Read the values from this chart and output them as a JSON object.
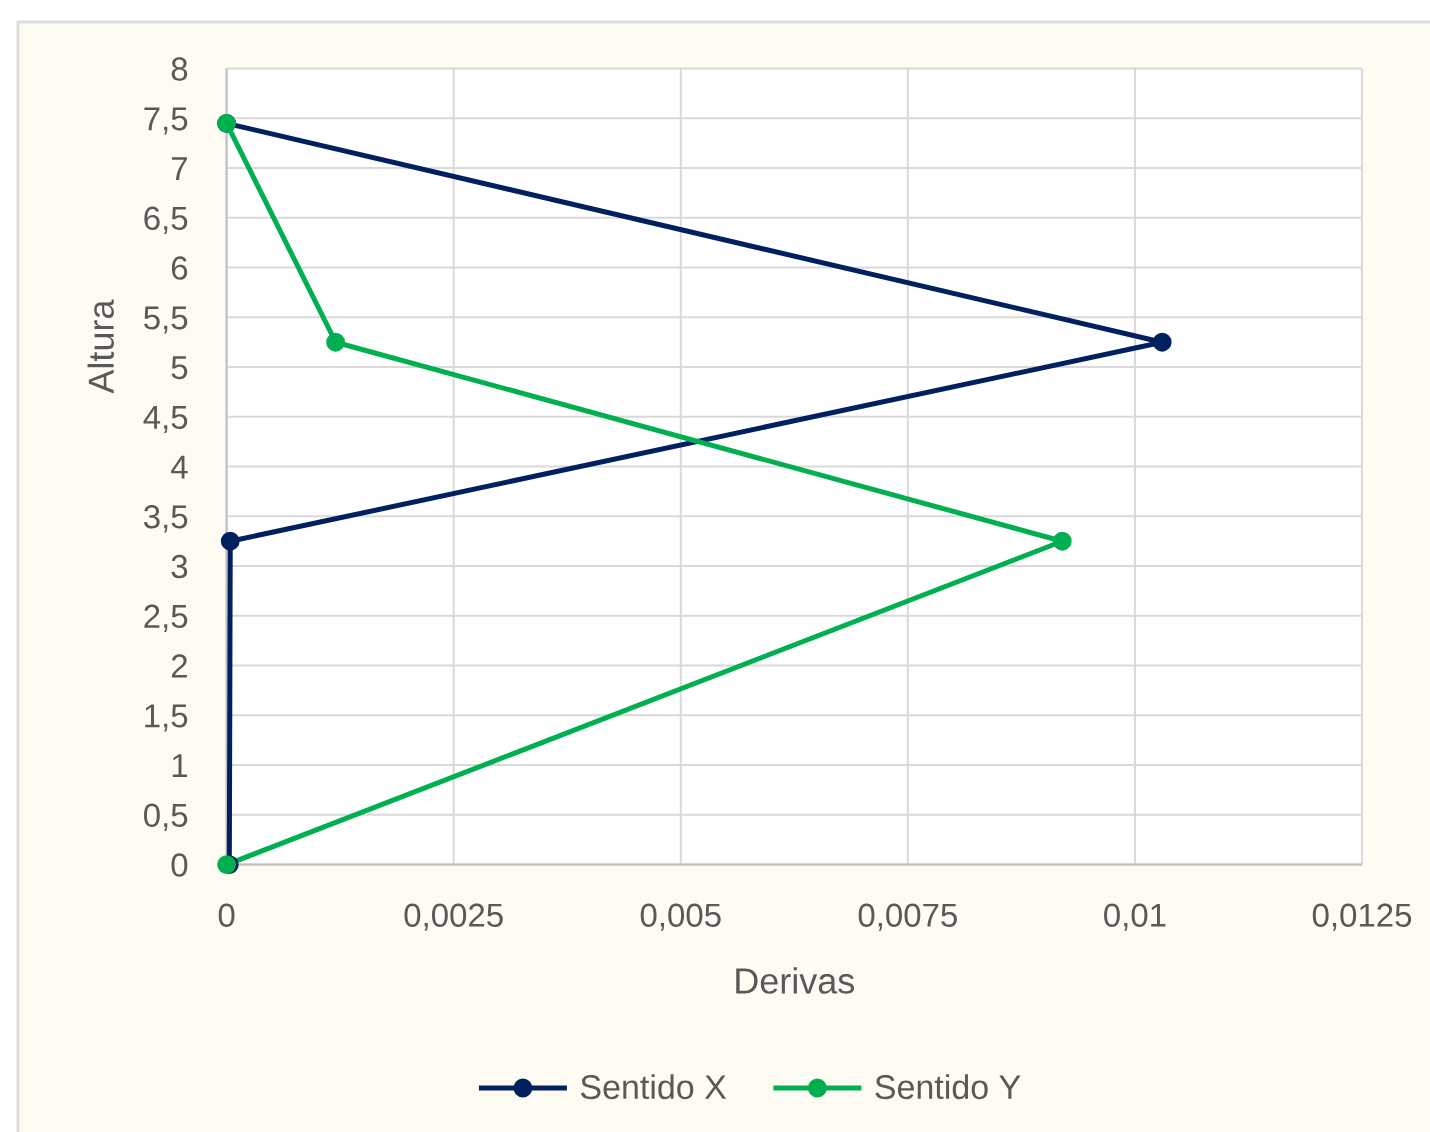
{
  "chart_data": {
    "type": "line",
    "xlabel": "Derivas",
    "ylabel": "Altura",
    "series": [
      {
        "name": "Sentido X",
        "color": "#002060",
        "x": [
          3e-05,
          4e-05,
          0.0103,
          0
        ],
        "values": [
          0,
          3.25,
          5.25,
          7.45
        ]
      },
      {
        "name": "Sentido Y",
        "color": "#00b050",
        "x": [
          0,
          0.0092,
          0.0012,
          0
        ],
        "values": [
          0,
          3.25,
          5.25,
          7.45
        ]
      }
    ],
    "xlim": [
      0,
      0.0125
    ],
    "ylim": [
      0,
      8
    ],
    "xticks": [
      0,
      {
        "value": 0.0025,
        "label": "0,0025"
      },
      {
        "value": 0.005,
        "label": "0,005"
      },
      {
        "value": 0.0075,
        "label": "0,0075"
      },
      {
        "value": 0.01,
        "label": "0,01"
      },
      {
        "value": 0.0125,
        "label": "0,0125"
      }
    ],
    "yticks": [
      0,
      {
        "value": 0.5,
        "label": "0,5"
      },
      1,
      {
        "value": 1.5,
        "label": "1,5"
      },
      2,
      {
        "value": 2.5,
        "label": "2,5"
      },
      3,
      {
        "value": 3.5,
        "label": "3,5"
      },
      4,
      {
        "value": 4.5,
        "label": "4,5"
      },
      5,
      {
        "value": 5.5,
        "label": "5,5"
      },
      6,
      {
        "value": 6.5,
        "label": "6,5"
      },
      7,
      {
        "value": 7.5,
        "label": "7,5"
      },
      8
    ],
    "grid": true,
    "legend": "bottom",
    "marker": "circle",
    "line_style": "solid"
  }
}
